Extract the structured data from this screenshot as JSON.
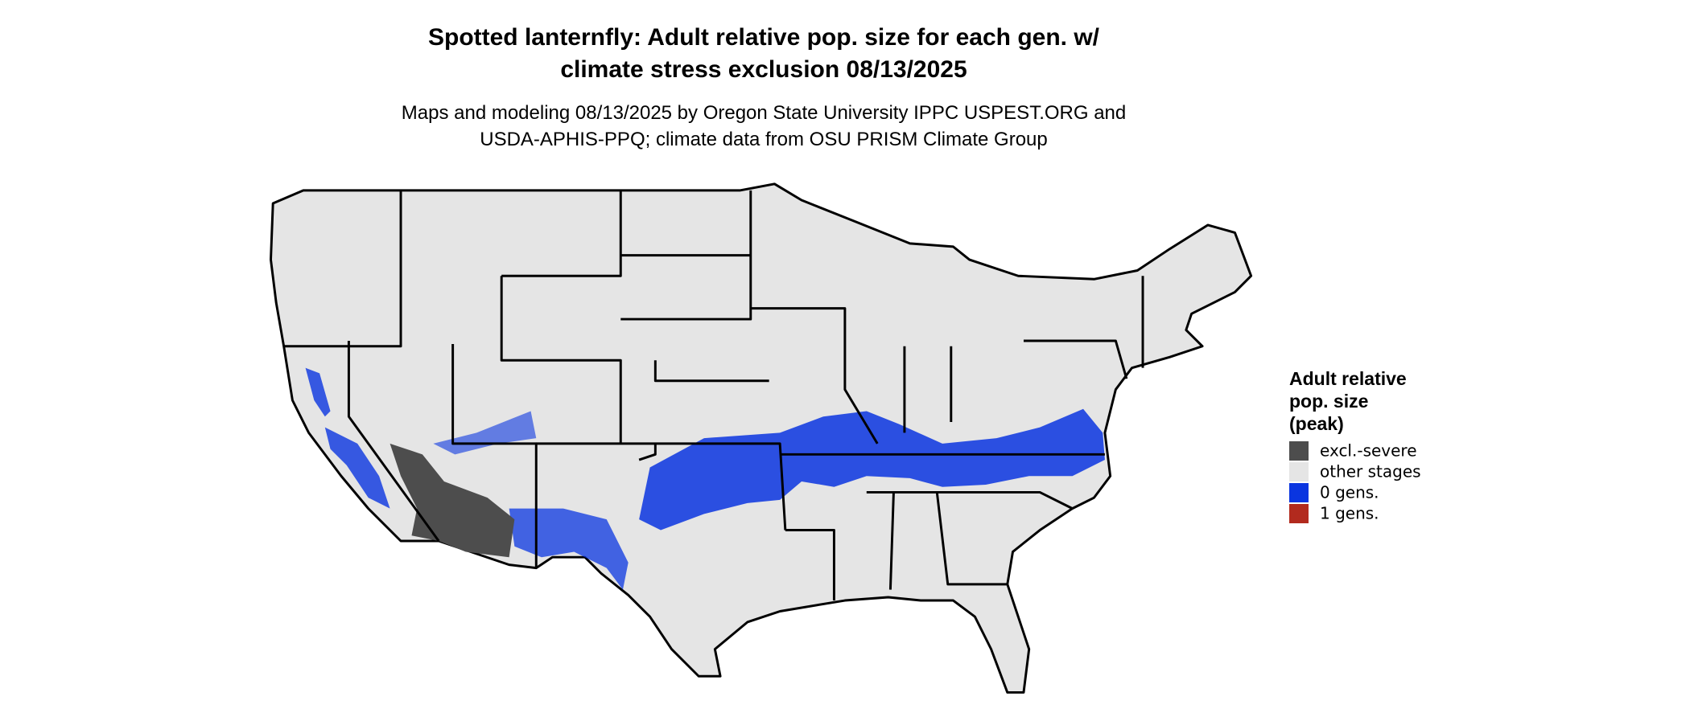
{
  "map": {
    "title": [
      "Spotted lanternfly: Adult relative pop. size for each gen. w/",
      "climate stress exclusion 08/13/2025"
    ],
    "subtitle": [
      "Maps and modeling 08/13/2025 by Oregon State University IPPC USPEST.ORG and",
      "USDA-APHIS-PPQ; climate data from OSU PRISM Climate Group"
    ],
    "legend": {
      "title": [
        "Adult relative",
        "pop. size",
        "(peak)"
      ],
      "items": [
        {
          "label": "excl.-severe",
          "color": "#4d4d4d"
        },
        {
          "label": "other stages",
          "color": "#e5e5e5"
        },
        {
          "label": "0 gens.",
          "color": "#0a35e0"
        },
        {
          "label": "1 gens.",
          "color": "#b22a1e"
        }
      ]
    }
  }
}
